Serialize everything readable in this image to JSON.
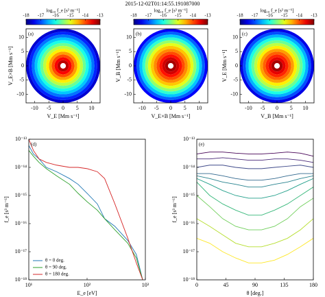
{
  "title": "2015-12-02T01:14:55.191087000",
  "chart_data": [
    {
      "type": "polar-heatmap",
      "panel_label": "(a)",
      "xlabel": "V_E [Mm s⁻¹]",
      "ylabel": "V_E×B [Mm s⁻¹]",
      "xlim": [
        -13,
        13
      ],
      "ylim": [
        -13,
        13
      ],
      "xticks": [
        -10,
        -5,
        0,
        5,
        10
      ],
      "yticks": [
        -10,
        -5,
        0,
        5,
        10
      ],
      "colormap": "jet",
      "colorbar_label": "log₁₀ f_e [s³ m⁻⁶]",
      "clim": [
        -18,
        -13
      ],
      "cticks": [
        -18,
        -17,
        -16,
        -15,
        -14,
        -13
      ],
      "radii": [
        1,
        2,
        3,
        4,
        5,
        6,
        7,
        8,
        9,
        10,
        11,
        12,
        13
      ],
      "values": [
        -13.3,
        -13.6,
        -14,
        -14.4,
        -14.8,
        -15.2,
        -15.6,
        -16,
        -16.4,
        -16.8,
        -17.2,
        -17.6
      ]
    },
    {
      "type": "polar-heatmap",
      "panel_label": "(b)",
      "xlabel": "V_E×B [Mm s⁻¹]",
      "ylabel": "V_B [Mm s⁻¹]",
      "xlim": [
        -13,
        13
      ],
      "ylim": [
        -13,
        13
      ],
      "xticks": [
        -10,
        -5,
        0,
        5,
        10
      ],
      "yticks": [
        -10,
        -5,
        0,
        5,
        10
      ],
      "colormap": "jet",
      "colorbar_label": "log₁₀ f_e [s³ m⁻⁶]",
      "clim": [
        -18,
        -13
      ],
      "cticks": [
        -18,
        -17,
        -16,
        -15,
        -14,
        -13
      ],
      "radii": [
        1,
        2,
        3,
        4,
        5,
        6,
        7,
        8,
        9,
        10,
        11,
        12,
        13
      ],
      "values": [
        -13.2,
        -13.4,
        -13.7,
        -14,
        -14.3,
        -14.6,
        -15,
        -15.4,
        -15.9,
        -16.4,
        -16.9,
        -17.4
      ]
    },
    {
      "type": "polar-heatmap",
      "panel_label": "(c)",
      "xlabel": "V_B [Mm s⁻¹]",
      "ylabel": "V_E [Mm s⁻¹]",
      "xlim": [
        -13,
        13
      ],
      "ylim": [
        -13,
        13
      ],
      "xticks": [
        -10,
        -5,
        0,
        5,
        10
      ],
      "yticks": [
        -10,
        -5,
        0,
        5,
        10
      ],
      "colormap": "jet",
      "colorbar_label": "log₁₀ f_e [s³ m⁻⁶]",
      "clim": [
        -18,
        -13
      ],
      "cticks": [
        -18,
        -17,
        -16,
        -15,
        -14,
        -13
      ],
      "radii": [
        1,
        2,
        3,
        4,
        5,
        6,
        7,
        8,
        9,
        10,
        11,
        12,
        13
      ],
      "values": [
        -13.2,
        -13.5,
        -13.8,
        -14.1,
        -14.4,
        -14.8,
        -15.2,
        -15.6,
        -16,
        -16.5,
        -17,
        -17.5
      ]
    },
    {
      "type": "line",
      "panel_label": "(d)",
      "xlabel": "E_e [eV]",
      "ylabel": "f_e [s³ m⁻⁶]",
      "xlog": true,
      "ylog": true,
      "legend": "lower left",
      "xlim": [
        10,
        1000
      ],
      "ylim": [
        1e-18,
        1e-13
      ],
      "xticks": [
        {
          "value": 10,
          "label": "10¹"
        },
        {
          "value": 100,
          "label": "10²"
        },
        {
          "value": 1000,
          "label": "10³"
        }
      ],
      "yticks": [
        {
          "value": 1e-18,
          "label": "10⁻¹⁸"
        },
        {
          "value": 1e-17,
          "label": "10⁻¹⁷"
        },
        {
          "value": 1e-16,
          "label": "10⁻¹⁶"
        },
        {
          "value": 1e-15,
          "label": "10⁻¹⁵"
        },
        {
          "value": 1e-14,
          "label": "10⁻¹⁴"
        },
        {
          "value": 1e-13,
          "label": "10⁻¹³"
        }
      ],
      "x": [
        10,
        12,
        15,
        20,
        30,
        50,
        70,
        100,
        150,
        200,
        300,
        500,
        700,
        900
      ],
      "series": [
        {
          "name": "θ = 0 deg.",
          "color": "#1f77b4",
          "values": [
            6e-14,
            3e-14,
            2e-14,
            1e-14,
            7e-15,
            4e-15,
            2.5e-15,
            1.2e-15,
            5e-16,
            1.5e-16,
            8e-17,
            2.5e-17,
            8e-18,
            1e-18
          ]
        },
        {
          "name": "θ = 90 deg.",
          "color": "#2ca02c",
          "values": [
            4e-14,
            2.5e-14,
            1.5e-14,
            9e-15,
            5e-15,
            2.5e-15,
            1.2e-15,
            6e-16,
            3e-16,
            1.5e-16,
            6e-17,
            2e-17,
            6e-18,
            1e-18
          ]
        },
        {
          "name": "θ = 180 deg.",
          "color": "#d62728",
          "values": [
            1e-13,
            4e-14,
            2e-14,
            1.5e-14,
            1.2e-14,
            1e-14,
            1e-14,
            9e-15,
            7e-15,
            4e-15,
            5e-16,
            3e-17,
            4e-18,
            1e-18
          ]
        }
      ]
    },
    {
      "type": "line",
      "panel_label": "(e)",
      "xlabel": "θ [deg.]",
      "ylabel": "f_e [s³ m⁻⁶]",
      "xlog": false,
      "ylog": true,
      "xlim": [
        0,
        180
      ],
      "ylim": [
        1e-18,
        1e-13
      ],
      "xticks": [
        0,
        45,
        90,
        135,
        180
      ],
      "yticks": [
        {
          "value": 1e-18,
          "label": "10⁻¹⁸"
        },
        {
          "value": 1e-17,
          "label": "10⁻¹⁷"
        },
        {
          "value": 1e-16,
          "label": "10⁻¹⁶"
        },
        {
          "value": 1e-15,
          "label": "10⁻¹⁵"
        },
        {
          "value": 1e-14,
          "label": "10⁻¹⁴"
        },
        {
          "value": 1e-13,
          "label": "10⁻¹³"
        }
      ],
      "x": [
        0,
        20,
        40,
        60,
        80,
        100,
        120,
        140,
        160,
        180
      ],
      "series": [
        {
          "color": "#440154",
          "values": [
            3e-14,
            3.5e-14,
            3.5e-14,
            3.2e-14,
            3e-14,
            3e-14,
            3.2e-14,
            3.5e-14,
            3.2e-14,
            2.5e-14
          ]
        },
        {
          "color": "#482878",
          "values": [
            2e-14,
            2e-14,
            2.2e-14,
            2e-14,
            1.8e-14,
            1.8e-14,
            2e-14,
            2e-14,
            1.8e-14,
            1.5e-14
          ]
        },
        {
          "color": "#3e4989",
          "values": [
            1e-14,
            1.2e-14,
            1.2e-14,
            1e-14,
            9e-15,
            9e-15,
            1e-14,
            1.1e-14,
            1.2e-14,
            1e-14
          ]
        },
        {
          "color": "#31688e",
          "values": [
            6e-15,
            6e-15,
            5e-15,
            4e-15,
            3.5e-15,
            3.5e-15,
            4e-15,
            5e-15,
            6e-15,
            6e-15
          ]
        },
        {
          "color": "#26828e",
          "values": [
            5e-15,
            4e-15,
            3e-15,
            2.5e-15,
            2e-15,
            2e-15,
            2.5e-15,
            3e-15,
            4e-15,
            5e-15
          ]
        },
        {
          "color": "#1f9e89",
          "values": [
            4e-15,
            2.5e-15,
            1.5e-15,
            1e-15,
            8e-16,
            8e-16,
            1e-15,
            1.5e-15,
            2.5e-15,
            4e-15
          ]
        },
        {
          "color": "#35b779",
          "values": [
            3e-15,
            1e-15,
            5e-16,
            3e-16,
            2e-16,
            2e-16,
            3e-16,
            5e-16,
            1e-15,
            2e-15
          ]
        },
        {
          "color": "#6ece58",
          "values": [
            1e-15,
            4e-16,
            1.5e-16,
            8e-17,
            6e-17,
            6e-17,
            8e-17,
            1.5e-16,
            4e-16,
            8e-16
          ]
        },
        {
          "color": "#b5de2b",
          "values": [
            1.5e-16,
            8e-17,
            4e-17,
            2e-17,
            1.5e-17,
            1.5e-17,
            2e-17,
            3e-17,
            6e-17,
            1.5e-16
          ]
        },
        {
          "color": "#fde725",
          "values": [
            3e-17,
            2e-17,
            1e-17,
            6e-18,
            4e-18,
            4e-18,
            5e-18,
            8e-18,
            1.5e-17,
            3e-17
          ]
        }
      ]
    }
  ]
}
